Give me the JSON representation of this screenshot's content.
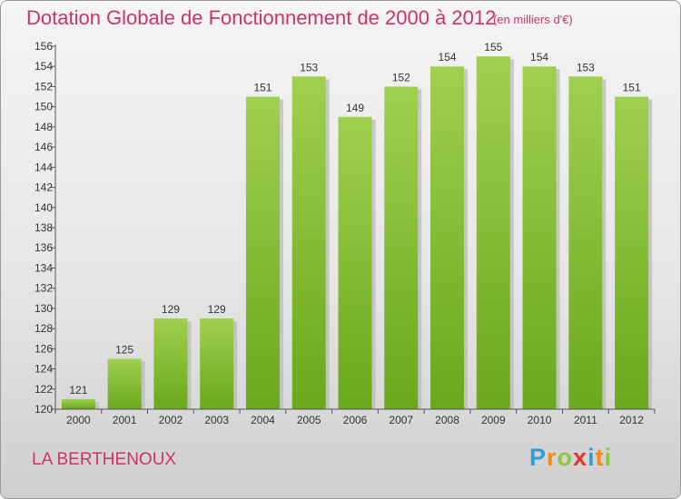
{
  "header": {
    "title": "Dotation Globale de Fonctionnement de 2000 à 2012",
    "unit": "(en milliers d'€)"
  },
  "footer": {
    "commune": "LA BERTHENOUX",
    "logo_letters": [
      "P",
      "r",
      "o",
      "x",
      "i",
      "t",
      "i"
    ],
    "logo_colors": [
      "#2f9fd8",
      "#f08a1c",
      "#8cc63f",
      "#e8312f",
      "#2f9fd8",
      "#f08a1c",
      "#8cc63f"
    ]
  },
  "colors": {
    "bar_light": "#9fd04e",
    "bar_dark": "#6aa81c",
    "bar_shadow": "#b8b8b8",
    "axis": "#555555",
    "accent": "#cc3366"
  },
  "chart_data": {
    "type": "bar",
    "title": "Dotation Globale de Fonctionnement de 2000 à 2012",
    "subtitle": "(en milliers d'€)",
    "xlabel": "",
    "ylabel": "",
    "categories": [
      "2000",
      "2001",
      "2002",
      "2003",
      "2004",
      "2005",
      "2006",
      "2007",
      "2008",
      "2009",
      "2010",
      "2011",
      "2012"
    ],
    "values": [
      121,
      125,
      129,
      129,
      151,
      153,
      149,
      152,
      154,
      155,
      154,
      153,
      151
    ],
    "ylim": [
      120,
      156
    ],
    "yticks": [
      120,
      122,
      124,
      126,
      128,
      130,
      132,
      134,
      136,
      138,
      140,
      142,
      144,
      146,
      148,
      150,
      152,
      154,
      156
    ],
    "grid": false,
    "legend": "none"
  }
}
